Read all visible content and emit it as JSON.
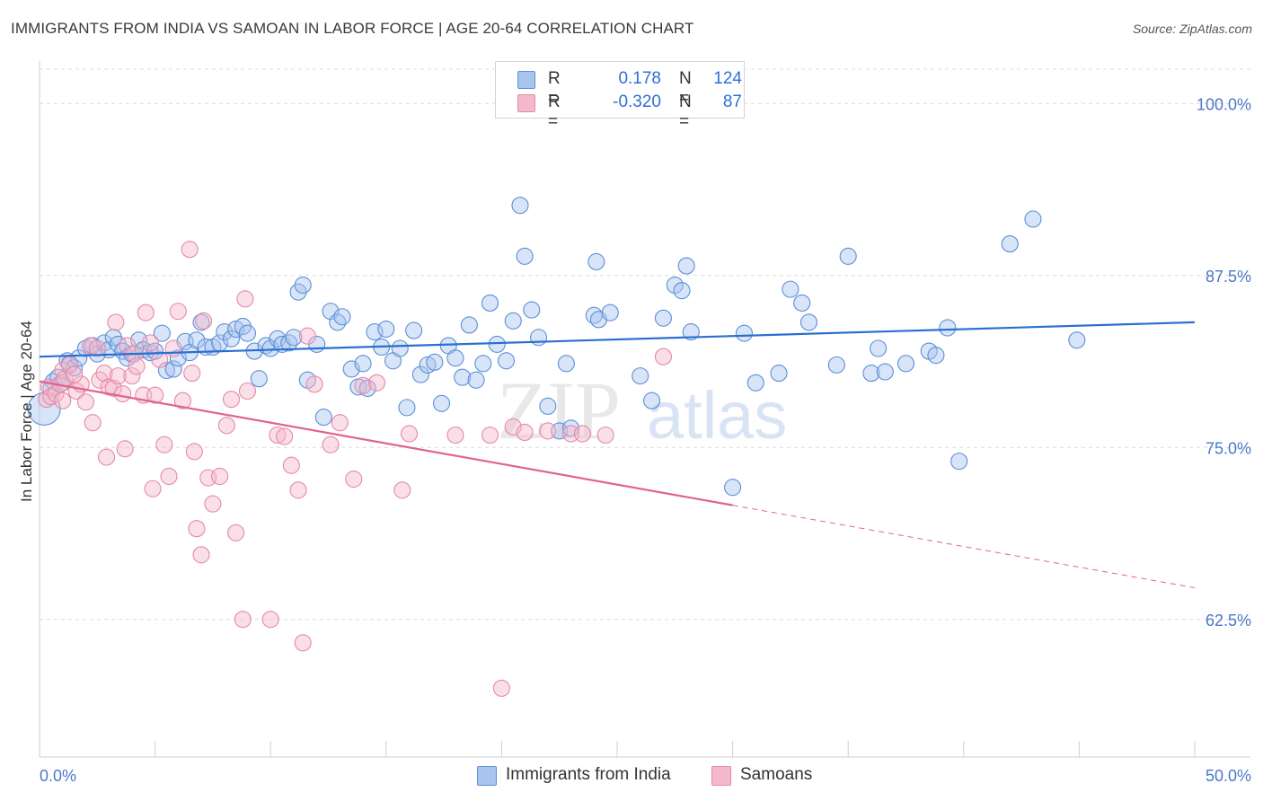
{
  "title": "IMMIGRANTS FROM INDIA VS SAMOAN IN LABOR FORCE | AGE 20-64 CORRELATION CHART",
  "source": "Source: ZipAtlas.com",
  "watermark": {
    "zip": "ZIP",
    "atlas": "atlas"
  },
  "colors": {
    "blue_fill": "#a9c4ee",
    "blue_stroke": "#5b8fd8",
    "blue_line": "#2a6fd0",
    "pink_fill": "#f5b9cd",
    "pink_stroke": "#e589a8",
    "pink_line": "#e0648e",
    "tick_text": "#4a78c8",
    "grid": "#dcdcdc"
  },
  "legend": {
    "rows": [
      {
        "r_label": "R =",
        "r_value": "0.178",
        "n_label": "N =",
        "n_value": "124",
        "color": "#a9c4ee"
      },
      {
        "r_label": "R =",
        "r_value": "-0.320",
        "n_label": "N =",
        "n_value": "87",
        "color": "#f5b9cd"
      }
    ]
  },
  "bottom_legend": [
    {
      "label": "Immigrants from India",
      "color": "#a9c4ee"
    },
    {
      "label": "Samoans",
      "color": "#f5b9cd"
    }
  ],
  "chart_data": {
    "type": "scatter",
    "ylabel": "In Labor Force | Age 20-64",
    "xlim": [
      0,
      50
    ],
    "ylim": [
      52.5,
      102.5
    ],
    "x_tick_labels": [
      {
        "value": 0,
        "label": "0.0%"
      },
      {
        "value": 50,
        "label": "50.0%"
      }
    ],
    "y_ticks": [
      {
        "value": 100,
        "label": "100.0%"
      },
      {
        "value": 87.5,
        "label": "87.5%"
      },
      {
        "value": 75,
        "label": "75.0%"
      },
      {
        "value": 62.5,
        "label": "62.5%"
      }
    ],
    "grid": "horizontal-dashed",
    "legend_position": "top-center",
    "series": [
      {
        "name": "Immigrants from India",
        "trend": {
          "x": [
            0,
            50
          ],
          "y": [
            81.6,
            84.1
          ],
          "dashed_from": null
        },
        "points": [
          [
            0.2,
            77.8
          ],
          [
            0.5,
            79.3
          ],
          [
            0.6,
            79.8
          ],
          [
            0.8,
            80.1
          ],
          [
            1.0,
            79.7
          ],
          [
            1.2,
            81.3
          ],
          [
            1.3,
            81.1
          ],
          [
            1.5,
            80.8
          ],
          [
            1.7,
            81.5
          ],
          [
            2.0,
            82.2
          ],
          [
            2.3,
            82.4
          ],
          [
            2.5,
            81.8
          ],
          [
            2.8,
            82.6
          ],
          [
            3.0,
            82.1
          ],
          [
            3.2,
            83.0
          ],
          [
            3.4,
            82.5
          ],
          [
            3.6,
            82.0
          ],
          [
            3.8,
            81.5
          ],
          [
            4.0,
            81.8
          ],
          [
            4.3,
            82.8
          ],
          [
            4.5,
            82.1
          ],
          [
            4.8,
            81.9
          ],
          [
            5.0,
            82.0
          ],
          [
            5.3,
            83.3
          ],
          [
            5.5,
            80.6
          ],
          [
            5.8,
            80.7
          ],
          [
            6.0,
            81.5
          ],
          [
            6.3,
            82.7
          ],
          [
            6.5,
            81.9
          ],
          [
            6.8,
            82.8
          ],
          [
            7.0,
            84.1
          ],
          [
            7.2,
            82.3
          ],
          [
            7.5,
            82.3
          ],
          [
            7.8,
            82.6
          ],
          [
            8.0,
            83.4
          ],
          [
            8.3,
            82.9
          ],
          [
            8.5,
            83.6
          ],
          [
            8.8,
            83.8
          ],
          [
            9.0,
            83.3
          ],
          [
            9.3,
            82.0
          ],
          [
            9.5,
            80.0
          ],
          [
            9.8,
            82.4
          ],
          [
            10.0,
            82.2
          ],
          [
            10.3,
            82.9
          ],
          [
            10.5,
            82.5
          ],
          [
            10.8,
            82.6
          ],
          [
            11.0,
            83.0
          ],
          [
            11.2,
            86.3
          ],
          [
            11.4,
            86.8
          ],
          [
            11.6,
            79.9
          ],
          [
            12.0,
            82.5
          ],
          [
            12.3,
            77.2
          ],
          [
            12.6,
            84.9
          ],
          [
            12.9,
            84.1
          ],
          [
            13.1,
            84.5
          ],
          [
            13.5,
            80.7
          ],
          [
            13.8,
            79.4
          ],
          [
            14.0,
            81.1
          ],
          [
            14.2,
            79.3
          ],
          [
            14.5,
            83.4
          ],
          [
            14.8,
            82.3
          ],
          [
            15.0,
            83.6
          ],
          [
            15.3,
            81.3
          ],
          [
            15.6,
            82.2
          ],
          [
            15.9,
            77.9
          ],
          [
            16.2,
            83.5
          ],
          [
            16.5,
            80.3
          ],
          [
            16.8,
            81.0
          ],
          [
            17.1,
            81.2
          ],
          [
            17.4,
            78.2
          ],
          [
            17.7,
            82.4
          ],
          [
            18.0,
            81.5
          ],
          [
            18.3,
            80.1
          ],
          [
            18.6,
            83.9
          ],
          [
            18.9,
            79.9
          ],
          [
            19.2,
            81.1
          ],
          [
            19.5,
            85.5
          ],
          [
            19.8,
            82.5
          ],
          [
            20.2,
            81.3
          ],
          [
            20.5,
            84.2
          ],
          [
            20.8,
            92.6
          ],
          [
            21.0,
            88.9
          ],
          [
            21.3,
            85.0
          ],
          [
            21.6,
            83.0
          ],
          [
            22.0,
            78.0
          ],
          [
            22.5,
            76.2
          ],
          [
            22.8,
            81.1
          ],
          [
            23.0,
            76.4
          ],
          [
            24.0,
            84.6
          ],
          [
            24.1,
            88.5
          ],
          [
            24.2,
            84.3
          ],
          [
            24.7,
            84.8
          ],
          [
            26.0,
            80.2
          ],
          [
            26.5,
            78.4
          ],
          [
            27.0,
            84.4
          ],
          [
            27.5,
            86.8
          ],
          [
            27.8,
            86.4
          ],
          [
            28.0,
            88.2
          ],
          [
            28.2,
            83.4
          ],
          [
            30.0,
            72.1
          ],
          [
            30.5,
            83.3
          ],
          [
            31.0,
            79.7
          ],
          [
            32.0,
            80.4
          ],
          [
            32.5,
            86.5
          ],
          [
            33.0,
            85.5
          ],
          [
            33.3,
            84.1
          ],
          [
            34.5,
            81.0
          ],
          [
            35.0,
            88.9
          ],
          [
            36.0,
            80.4
          ],
          [
            36.3,
            82.2
          ],
          [
            36.6,
            80.5
          ],
          [
            37.5,
            81.1
          ],
          [
            38.5,
            82.0
          ],
          [
            38.8,
            81.7
          ],
          [
            39.3,
            83.7
          ],
          [
            39.8,
            74.0
          ],
          [
            42.0,
            89.8
          ],
          [
            43.0,
            91.6
          ],
          [
            44.9,
            82.8
          ]
        ]
      },
      {
        "name": "Samoans",
        "trend": {
          "x": [
            0,
            50
          ],
          "y": [
            79.8,
            64.8
          ],
          "dashed_from": 30
        },
        "points": [
          [
            0.3,
            78.5
          ],
          [
            0.4,
            79.4
          ],
          [
            0.5,
            78.7
          ],
          [
            0.7,
            78.9
          ],
          [
            0.9,
            79.6
          ],
          [
            1.0,
            80.6
          ],
          [
            1.1,
            80.0
          ],
          [
            1.3,
            81.0
          ],
          [
            1.6,
            79.1
          ],
          [
            1.8,
            79.6
          ],
          [
            2.0,
            78.3
          ],
          [
            2.2,
            82.4
          ],
          [
            2.5,
            82.2
          ],
          [
            2.6,
            79.9
          ],
          [
            2.8,
            80.4
          ],
          [
            3.0,
            79.4
          ],
          [
            3.2,
            79.3
          ],
          [
            3.4,
            80.2
          ],
          [
            3.6,
            78.9
          ],
          [
            3.8,
            82.4
          ],
          [
            4.0,
            80.2
          ],
          [
            4.1,
            81.8
          ],
          [
            4.2,
            80.9
          ],
          [
            4.5,
            78.8
          ],
          [
            4.6,
            84.8
          ],
          [
            4.8,
            82.6
          ],
          [
            5.0,
            78.8
          ],
          [
            5.2,
            81.4
          ],
          [
            5.4,
            75.2
          ],
          [
            5.6,
            72.9
          ],
          [
            5.8,
            82.2
          ],
          [
            6.0,
            84.9
          ],
          [
            6.2,
            78.4
          ],
          [
            6.5,
            89.4
          ],
          [
            6.6,
            80.4
          ],
          [
            6.8,
            69.1
          ],
          [
            7.0,
            67.2
          ],
          [
            7.1,
            84.2
          ],
          [
            7.3,
            72.8
          ],
          [
            7.5,
            70.9
          ],
          [
            7.8,
            72.9
          ],
          [
            8.1,
            76.6
          ],
          [
            8.3,
            78.5
          ],
          [
            8.5,
            68.8
          ],
          [
            8.8,
            62.5
          ],
          [
            8.9,
            85.8
          ],
          [
            9.0,
            79.1
          ],
          [
            10.0,
            62.5
          ],
          [
            10.3,
            75.9
          ],
          [
            10.6,
            75.8
          ],
          [
            10.9,
            73.7
          ],
          [
            11.2,
            71.9
          ],
          [
            11.4,
            60.8
          ],
          [
            11.6,
            83.1
          ],
          [
            11.9,
            79.6
          ],
          [
            12.6,
            75.2
          ],
          [
            13.0,
            76.8
          ],
          [
            13.6,
            72.7
          ],
          [
            14.0,
            79.5
          ],
          [
            14.6,
            79.7
          ],
          [
            15.7,
            71.9
          ],
          [
            16.0,
            76.0
          ],
          [
            18.0,
            75.9
          ],
          [
            19.5,
            75.9
          ],
          [
            20.0,
            57.5
          ],
          [
            20.5,
            76.5
          ],
          [
            21.0,
            76.1
          ],
          [
            22.0,
            76.2
          ],
          [
            23.0,
            76.0
          ],
          [
            23.5,
            76.0
          ],
          [
            24.5,
            75.9
          ],
          [
            27.0,
            81.6
          ],
          [
            1.0,
            78.4
          ],
          [
            1.5,
            80.3
          ],
          [
            2.3,
            76.8
          ],
          [
            2.9,
            74.3
          ],
          [
            3.7,
            74.9
          ],
          [
            4.9,
            72.0
          ],
          [
            6.7,
            74.7
          ],
          [
            3.3,
            84.1
          ]
        ]
      }
    ]
  }
}
